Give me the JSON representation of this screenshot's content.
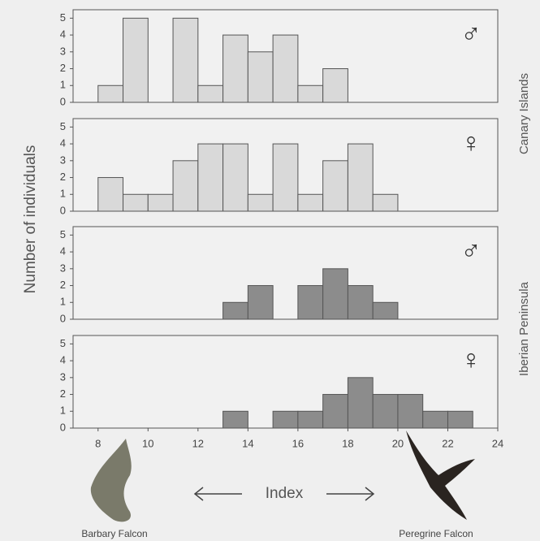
{
  "chart_data": [
    {
      "type": "histogram",
      "symbol": "♂",
      "color": "#d9d9d9",
      "bins": [
        8,
        9,
        10,
        11,
        12,
        13,
        14,
        15,
        16,
        17,
        18,
        19,
        20,
        21,
        22,
        23
      ],
      "values": [
        1,
        5,
        0,
        5,
        1,
        4,
        3,
        4,
        1,
        2,
        0,
        0,
        0,
        0,
        0
      ],
      "xlim": [
        7,
        24
      ],
      "ylim": [
        0,
        5.5
      ],
      "yticks": [
        0,
        1,
        2,
        3,
        4,
        5
      ]
    },
    {
      "type": "histogram",
      "symbol": "♀",
      "color": "#d9d9d9",
      "bins": [
        8,
        9,
        10,
        11,
        12,
        13,
        14,
        15,
        16,
        17,
        18,
        19,
        20,
        21,
        22,
        23
      ],
      "values": [
        2,
        1,
        1,
        3,
        4,
        4,
        1,
        4,
        1,
        3,
        4,
        1,
        0,
        0,
        0
      ],
      "xlim": [
        7,
        24
      ],
      "ylim": [
        0,
        5.5
      ],
      "yticks": [
        0,
        1,
        2,
        3,
        4,
        5
      ]
    },
    {
      "type": "histogram",
      "symbol": "♂",
      "color": "#8c8c8c",
      "bins": [
        8,
        9,
        10,
        11,
        12,
        13,
        14,
        15,
        16,
        17,
        18,
        19,
        20,
        21,
        22,
        23
      ],
      "values": [
        0,
        0,
        0,
        0,
        0,
        1,
        2,
        0,
        2,
        3,
        2,
        1,
        0,
        0,
        0
      ],
      "xlim": [
        7,
        24
      ],
      "ylim": [
        0,
        5.5
      ],
      "yticks": [
        0,
        1,
        2,
        3,
        4,
        5
      ]
    },
    {
      "type": "histogram",
      "symbol": "♀",
      "color": "#8c8c8c",
      "bins": [
        8,
        9,
        10,
        11,
        12,
        13,
        14,
        15,
        16,
        17,
        18,
        19,
        20,
        21,
        22,
        23
      ],
      "values": [
        0,
        0,
        0,
        0,
        0,
        1,
        0,
        1,
        1,
        2,
        3,
        2,
        2,
        1,
        1
      ],
      "xlim": [
        7,
        24
      ],
      "ylim": [
        0,
        5.5
      ],
      "yticks": [
        0,
        1,
        2,
        3,
        4,
        5
      ],
      "xticks": [
        8,
        10,
        12,
        14,
        16,
        18,
        20,
        22,
        24
      ]
    }
  ],
  "y_label": "Number of individuals",
  "groups": [
    "Canary Islands",
    "Iberian Peninsula"
  ],
  "x_label": "Index",
  "species": [
    "Barbary Falcon",
    "Peregrine Falcon"
  ]
}
